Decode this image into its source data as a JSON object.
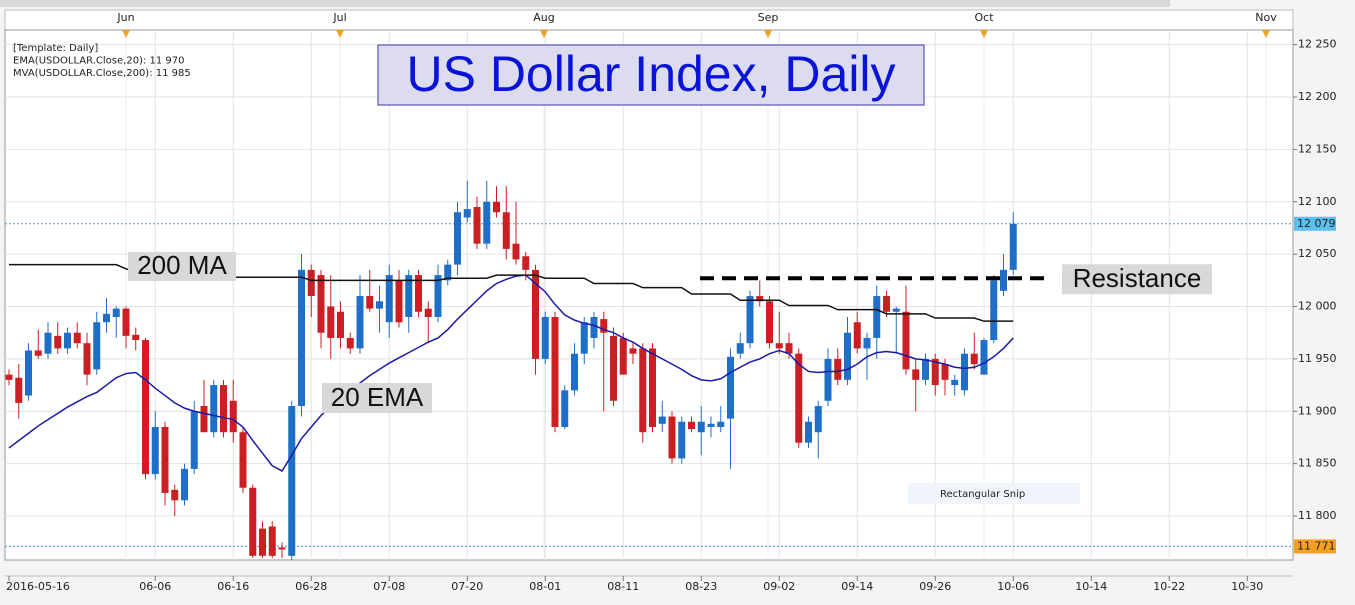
{
  "chart_data": {
    "type": "candlestick",
    "title": "US Dollar Index, Daily",
    "legend_lines": [
      "[Template: Daily]",
      "EMA(USDOLLAR.Close,20): 11 970",
      "MVA(USDOLLAR.Close,200): 11 985"
    ],
    "legend_colors": [
      "#333333",
      "#1a1aaa",
      "#111111"
    ],
    "month_labels": [
      "Jun",
      "Jul",
      "Aug",
      "Sep",
      "Oct",
      "Nov"
    ],
    "categories": [
      "2016-05-16",
      null,
      null,
      null,
      null,
      null,
      null,
      null,
      null,
      null,
      null,
      null,
      null,
      null,
      null,
      "06-06",
      null,
      null,
      null,
      null,
      null,
      null,
      null,
      "06-16",
      null,
      null,
      null,
      null,
      null,
      null,
      null,
      "06-28",
      null,
      null,
      null,
      null,
      null,
      null,
      null,
      "07-08",
      null,
      null,
      null,
      null,
      null,
      null,
      null,
      "07-20",
      null,
      null,
      null,
      null,
      null,
      null,
      null,
      "08-01",
      null,
      null,
      null,
      null,
      null,
      null,
      null,
      "08-11",
      null,
      null,
      null,
      null,
      null,
      null,
      null,
      "08-23",
      null,
      null,
      null,
      null,
      null,
      null,
      null,
      "09-02",
      null,
      null,
      null,
      null,
      null,
      null,
      null,
      "09-14",
      null,
      null,
      null,
      null,
      null,
      null,
      null,
      "09-26",
      null,
      null,
      null,
      null,
      null,
      null,
      null,
      "10-06"
    ],
    "future_categories": [
      "10-14",
      "10-22",
      "10-30"
    ],
    "open": [
      11935,
      11932,
      11915,
      11958,
      11955,
      11972,
      11960,
      11975,
      11965,
      11940,
      11985,
      11990,
      11998,
      11973,
      11968,
      11840,
      11885,
      11825,
      11815,
      11845,
      11905,
      11880,
      11925,
      11910,
      11880,
      11827,
      11788,
      11790,
      11770,
      11762,
      11905,
      12035,
      12030,
      12000,
      11995,
      11970,
      11960,
      12010,
      11998,
      11985,
      12025,
      11990,
      12030,
      11998,
      11990,
      12025,
      12040,
      12085,
      12095,
      12060,
      12100,
      12090,
      12060,
      12048,
      12035,
      11950,
      11990,
      11885,
      11920,
      11955,
      11970,
      11988,
      11972,
      11970,
      11960,
      11960,
      11960,
      11888,
      11895,
      11855,
      11890,
      11880,
      11885,
      11885,
      11893,
      11955,
      11965,
      12010,
      12005,
      11965,
      11965,
      11955,
      11870,
      11880,
      11910,
      11950,
      11930,
      11985,
      11960,
      11970,
      12010,
      11995,
      11995,
      11940,
      11930,
      11950,
      11945,
      11925,
      11920,
      11955,
      11935,
      11968,
      12015,
      12035
    ],
    "high": [
      11940,
      11945,
      11965,
      11978,
      11985,
      11985,
      11980,
      11985,
      11975,
      11995,
      12008,
      12000,
      12000,
      11980,
      11970,
      11900,
      11890,
      11830,
      11850,
      11910,
      11930,
      11930,
      11930,
      11930,
      11885,
      11830,
      11795,
      11795,
      11775,
      11910,
      12050,
      12040,
      12035,
      12030,
      12005,
      11975,
      12030,
      12035,
      12020,
      12040,
      12035,
      12035,
      12035,
      12005,
      12040,
      12045,
      12100,
      12120,
      12105,
      12120,
      12115,
      12115,
      12100,
      12052,
      12040,
      11995,
      11995,
      11925,
      11965,
      11990,
      11995,
      11995,
      11980,
      11975,
      11965,
      11965,
      11965,
      11910,
      11900,
      11895,
      11895,
      11905,
      11895,
      11905,
      11960,
      11975,
      12015,
      12025,
      12010,
      11995,
      11975,
      11960,
      11895,
      11910,
      11960,
      11960,
      11990,
      11995,
      11975,
      12020,
      12015,
      12000,
      12020,
      11950,
      11955,
      11955,
      11950,
      11935,
      11960,
      11975,
      11970,
      12030,
      12050,
      12090
    ],
    "low": [
      11925,
      11893,
      11910,
      11950,
      11950,
      11955,
      11955,
      11960,
      11925,
      11935,
      11975,
      11970,
      11960,
      11958,
      11835,
      11835,
      11810,
      11800,
      11810,
      11840,
      11880,
      11875,
      11875,
      11870,
      11822,
      11760,
      11760,
      11760,
      11760,
      11758,
      11895,
      11990,
      11960,
      11950,
      11960,
      11955,
      11955,
      11995,
      11975,
      11970,
      11980,
      11975,
      11990,
      11965,
      11985,
      12020,
      12030,
      12080,
      12055,
      12055,
      12085,
      12045,
      12040,
      12025,
      11935,
      11945,
      11880,
      11883,
      11915,
      11945,
      11960,
      11900,
      11905,
      11935,
      11945,
      11870,
      11880,
      11880,
      11850,
      11850,
      11880,
      11858,
      11875,
      11880,
      11845,
      11950,
      11960,
      12000,
      11960,
      11955,
      11950,
      11865,
      11865,
      11855,
      11905,
      11925,
      11925,
      11955,
      11930,
      11950,
      11990,
      11955,
      11935,
      11900,
      11925,
      11915,
      11915,
      11915,
      11915,
      11940,
      11935,
      11965,
      12010,
      12030
    ],
    "close": [
      11930,
      11908,
      11958,
      11953,
      11975,
      11960,
      11975,
      11965,
      11935,
      11985,
      11993,
      11998,
      11972,
      11968,
      11840,
      11885,
      11822,
      11815,
      11845,
      11900,
      11880,
      11925,
      11880,
      11880,
      11827,
      11762,
      11762,
      11762,
      11768,
      11905,
      12035,
      12010,
      11975,
      11970,
      11970,
      11960,
      12010,
      11998,
      12005,
      12030,
      11985,
      12030,
      11995,
      11990,
      12030,
      12040,
      12090,
      12093,
      12060,
      12100,
      12090,
      12055,
      12045,
      12035,
      11950,
      11990,
      11885,
      11920,
      11955,
      11985,
      11990,
      11975,
      11910,
      11935,
      11955,
      11880,
      11885,
      11895,
      11855,
      11890,
      11883,
      11890,
      11888,
      11890,
      11952,
      11965,
      12010,
      12005,
      11965,
      11960,
      11955,
      11870,
      11890,
      11905,
      11950,
      11930,
      11975,
      11960,
      11970,
      12010,
      11995,
      11998,
      11940,
      11930,
      11950,
      11925,
      11930,
      11930,
      11955,
      11945,
      11968,
      12025,
      12035,
      12079
    ],
    "up_color": "#1f6fc8",
    "down_color": "#cc1f24",
    "lines": [
      {
        "color": "#1a1aaa",
        "values": [
          11865,
          11872,
          11879,
          11886,
          11892,
          11898,
          11904,
          11909,
          11914,
          11918,
          11925,
          11932,
          11936,
          11937,
          11930,
          11922,
          11915,
          11908,
          11903,
          11900,
          11898,
          11896,
          11894,
          11892,
          11885,
          11872,
          11860,
          11848,
          11843,
          11858,
          11874,
          11885,
          11896,
          11905,
          11913,
          11920,
          11927,
          11934,
          11940,
          11946,
          11951,
          11956,
          11961,
          11966,
          11970,
          11978,
          11988,
          11997,
          12006,
          12015,
          12022,
          12026,
          12029,
          12030,
          12022,
          12014,
          12002,
          11992,
          11987,
          11984,
          11982,
          11978,
          11975,
          11970,
          11966,
          11960,
          11955,
          11950,
          11945,
          11940,
          11934,
          11930,
          11929,
          11931,
          11937,
          11942,
          11947,
          11950,
          11955,
          11958,
          11955,
          11945,
          11938,
          11937,
          11938,
          11938,
          11940,
          11945,
          11952,
          11956,
          11957,
          11956,
          11953,
          11950,
          11949,
          11947,
          11945,
          11942,
          11941,
          11942,
          11946,
          11952,
          11960,
          11970
        ]
      },
      {
        "color": "#111111",
        "values": [
          12040,
          12040,
          12040,
          12040,
          12040,
          12040,
          12040,
          12040,
          12040,
          12040,
          12040,
          12040,
          12036,
          12033,
          12033,
          12028,
          12028,
          12028,
          12028,
          12028,
          12028,
          12028,
          12028,
          12028,
          12028,
          12028,
          12028,
          12028,
          12028,
          12028,
          12028,
          12025,
          12025,
          12025,
          12025,
          12025,
          12025,
          12025,
          12025,
          12025,
          12025,
          12025,
          12025,
          12025,
          12025,
          12027,
          12027,
          12027,
          12027,
          12027,
          12030,
          12030,
          12030,
          12030,
          12030,
          12027,
          12027,
          12027,
          12027,
          12027,
          12022,
          12022,
          12022,
          12022,
          12022,
          12018,
          12018,
          12018,
          12018,
          12018,
          12012,
          12012,
          12012,
          12012,
          12012,
          12006,
          12006,
          12006,
          12006,
          12006,
          12001,
          12001,
          12001,
          12001,
          12001,
          11997,
          11997,
          11997,
          11997,
          11997,
          11993,
          11993,
          11993,
          11993,
          11993,
          11989,
          11989,
          11989,
          11989,
          11989,
          11986,
          11986,
          11986,
          11986
        ]
      }
    ],
    "ylim": [
      11758,
      12264
    ],
    "yticks": [
      {
        "value": 11800,
        "label": "11 800"
      },
      {
        "value": 11850,
        "label": "11 850"
      },
      {
        "value": 11900,
        "label": "11 900"
      },
      {
        "value": 11950,
        "label": "11 950"
      },
      {
        "value": 12000,
        "label": "12 000"
      },
      {
        "value": 12050,
        "label": "12 050"
      },
      {
        "value": 12100,
        "label": "12 100"
      },
      {
        "value": 12150,
        "label": "12 150"
      },
      {
        "value": 12200,
        "label": "12 200"
      },
      {
        "value": 12250,
        "label": "12 250"
      }
    ],
    "grid": true,
    "price_labels": [
      {
        "value": 12079,
        "label": "12 079",
        "color": "#5bc0f0"
      },
      {
        "value": 11771,
        "label": "11 771",
        "color": "#f5a020"
      }
    ],
    "annotations": {
      "ma_label": "200 MA",
      "ema_label": "20 EMA",
      "resistance": {
        "label": "Resistance",
        "value": 12027
      }
    },
    "watermark": "Rectangular Snip"
  }
}
